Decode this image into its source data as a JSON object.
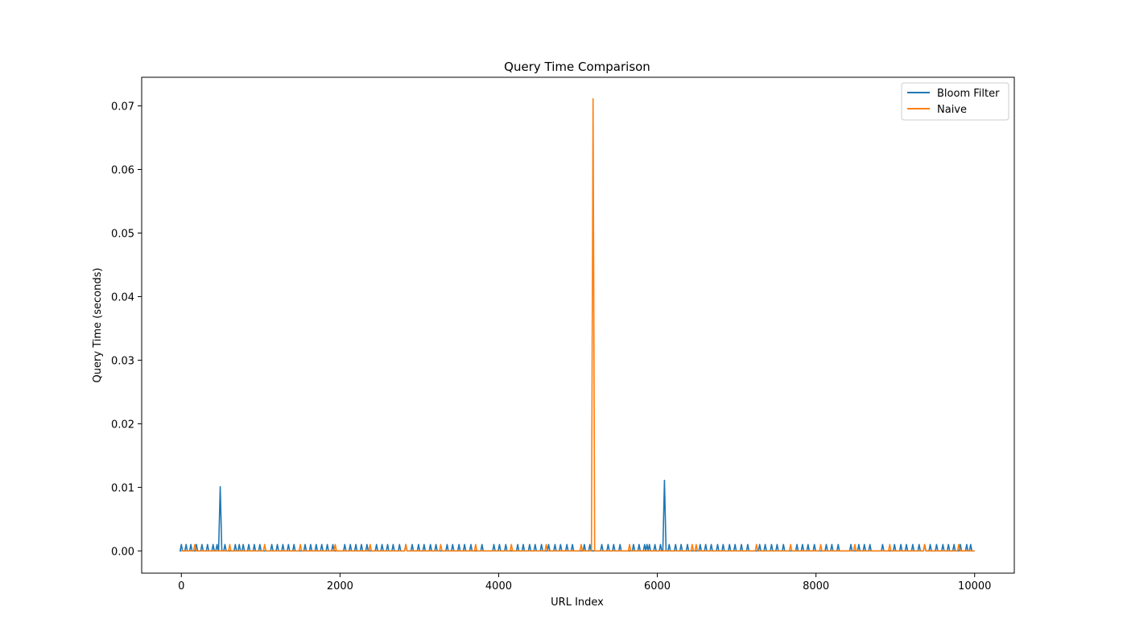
{
  "chart_data": {
    "type": "line",
    "title": "Query Time Comparison",
    "xlabel": "URL Index",
    "ylabel": "Query Time (seconds)",
    "xlim": [
      -500,
      10500
    ],
    "ylim": [
      -0.0035,
      0.0745
    ],
    "xticks": [
      0,
      2000,
      4000,
      6000,
      8000,
      10000
    ],
    "xtick_labels": [
      "0",
      "2000",
      "4000",
      "6000",
      "8000",
      "10000"
    ],
    "yticks": [
      0.0,
      0.01,
      0.02,
      0.03,
      0.04,
      0.05,
      0.06,
      0.07
    ],
    "ytick_labels": [
      "0.00",
      "0.01",
      "0.02",
      "0.03",
      "0.04",
      "0.05",
      "0.06",
      "0.07"
    ],
    "grid": false,
    "legend_position": "upper right",
    "x_range": [
      0,
      10000
    ],
    "series": [
      {
        "name": "Bloom Filter",
        "color": "#1f77b4",
        "baseline": 0.0,
        "spikes": [
          {
            "x": 0,
            "y": 0.001
          },
          {
            "x": 60,
            "y": 0.001
          },
          {
            "x": 120,
            "y": 0.001
          },
          {
            "x": 190,
            "y": 0.001
          },
          {
            "x": 260,
            "y": 0.001
          },
          {
            "x": 330,
            "y": 0.001
          },
          {
            "x": 400,
            "y": 0.001
          },
          {
            "x": 450,
            "y": 0.001
          },
          {
            "x": 490,
            "y": 0.0101
          },
          {
            "x": 550,
            "y": 0.001
          },
          {
            "x": 680,
            "y": 0.001
          },
          {
            "x": 730,
            "y": 0.001
          },
          {
            "x": 780,
            "y": 0.001
          },
          {
            "x": 850,
            "y": 0.001
          },
          {
            "x": 920,
            "y": 0.001
          },
          {
            "x": 990,
            "y": 0.001
          },
          {
            "x": 1140,
            "y": 0.001
          },
          {
            "x": 1210,
            "y": 0.001
          },
          {
            "x": 1280,
            "y": 0.001
          },
          {
            "x": 1350,
            "y": 0.001
          },
          {
            "x": 1420,
            "y": 0.001
          },
          {
            "x": 1560,
            "y": 0.001
          },
          {
            "x": 1630,
            "y": 0.001
          },
          {
            "x": 1700,
            "y": 0.001
          },
          {
            "x": 1770,
            "y": 0.001
          },
          {
            "x": 1840,
            "y": 0.001
          },
          {
            "x": 1910,
            "y": 0.001
          },
          {
            "x": 2060,
            "y": 0.001
          },
          {
            "x": 2130,
            "y": 0.001
          },
          {
            "x": 2200,
            "y": 0.001
          },
          {
            "x": 2270,
            "y": 0.001
          },
          {
            "x": 2340,
            "y": 0.001
          },
          {
            "x": 2460,
            "y": 0.001
          },
          {
            "x": 2530,
            "y": 0.001
          },
          {
            "x": 2600,
            "y": 0.001
          },
          {
            "x": 2670,
            "y": 0.001
          },
          {
            "x": 2750,
            "y": 0.001
          },
          {
            "x": 2830,
            "y": 0.001
          },
          {
            "x": 2910,
            "y": 0.001
          },
          {
            "x": 2990,
            "y": 0.001
          },
          {
            "x": 3060,
            "y": 0.001
          },
          {
            "x": 3140,
            "y": 0.001
          },
          {
            "x": 3210,
            "y": 0.001
          },
          {
            "x": 3350,
            "y": 0.001
          },
          {
            "x": 3420,
            "y": 0.001
          },
          {
            "x": 3500,
            "y": 0.001
          },
          {
            "x": 3570,
            "y": 0.001
          },
          {
            "x": 3650,
            "y": 0.001
          },
          {
            "x": 3790,
            "y": 0.001
          },
          {
            "x": 3940,
            "y": 0.001
          },
          {
            "x": 4010,
            "y": 0.001
          },
          {
            "x": 4090,
            "y": 0.001
          },
          {
            "x": 4240,
            "y": 0.001
          },
          {
            "x": 4310,
            "y": 0.001
          },
          {
            "x": 4390,
            "y": 0.001
          },
          {
            "x": 4460,
            "y": 0.001
          },
          {
            "x": 4540,
            "y": 0.001
          },
          {
            "x": 4630,
            "y": 0.001
          },
          {
            "x": 4710,
            "y": 0.001
          },
          {
            "x": 4780,
            "y": 0.001
          },
          {
            "x": 4860,
            "y": 0.001
          },
          {
            "x": 4930,
            "y": 0.001
          },
          {
            "x": 5080,
            "y": 0.001
          },
          {
            "x": 5150,
            "y": 0.001
          },
          {
            "x": 5300,
            "y": 0.001
          },
          {
            "x": 5380,
            "y": 0.001
          },
          {
            "x": 5450,
            "y": 0.001
          },
          {
            "x": 5530,
            "y": 0.001
          },
          {
            "x": 5700,
            "y": 0.001
          },
          {
            "x": 5770,
            "y": 0.001
          },
          {
            "x": 5840,
            "y": 0.001
          },
          {
            "x": 5870,
            "y": 0.001
          },
          {
            "x": 5900,
            "y": 0.001
          },
          {
            "x": 5970,
            "y": 0.001
          },
          {
            "x": 6040,
            "y": 0.001
          },
          {
            "x": 6090,
            "y": 0.0111
          },
          {
            "x": 6150,
            "y": 0.001
          },
          {
            "x": 6230,
            "y": 0.001
          },
          {
            "x": 6300,
            "y": 0.001
          },
          {
            "x": 6380,
            "y": 0.001
          },
          {
            "x": 6540,
            "y": 0.001
          },
          {
            "x": 6610,
            "y": 0.001
          },
          {
            "x": 6680,
            "y": 0.001
          },
          {
            "x": 6760,
            "y": 0.001
          },
          {
            "x": 6830,
            "y": 0.001
          },
          {
            "x": 6910,
            "y": 0.001
          },
          {
            "x": 6980,
            "y": 0.001
          },
          {
            "x": 7060,
            "y": 0.001
          },
          {
            "x": 7140,
            "y": 0.001
          },
          {
            "x": 7290,
            "y": 0.001
          },
          {
            "x": 7360,
            "y": 0.001
          },
          {
            "x": 7440,
            "y": 0.001
          },
          {
            "x": 7510,
            "y": 0.001
          },
          {
            "x": 7590,
            "y": 0.001
          },
          {
            "x": 7760,
            "y": 0.001
          },
          {
            "x": 7830,
            "y": 0.001
          },
          {
            "x": 7900,
            "y": 0.001
          },
          {
            "x": 7980,
            "y": 0.001
          },
          {
            "x": 8130,
            "y": 0.001
          },
          {
            "x": 8200,
            "y": 0.001
          },
          {
            "x": 8280,
            "y": 0.001
          },
          {
            "x": 8440,
            "y": 0.001
          },
          {
            "x": 8540,
            "y": 0.001
          },
          {
            "x": 8610,
            "y": 0.001
          },
          {
            "x": 8680,
            "y": 0.001
          },
          {
            "x": 8840,
            "y": 0.001
          },
          {
            "x": 8990,
            "y": 0.001
          },
          {
            "x": 9070,
            "y": 0.001
          },
          {
            "x": 9140,
            "y": 0.001
          },
          {
            "x": 9220,
            "y": 0.001
          },
          {
            "x": 9300,
            "y": 0.001
          },
          {
            "x": 9370,
            "y": 0.001
          },
          {
            "x": 9440,
            "y": 0.001
          },
          {
            "x": 9520,
            "y": 0.001
          },
          {
            "x": 9600,
            "y": 0.001
          },
          {
            "x": 9670,
            "y": 0.001
          },
          {
            "x": 9740,
            "y": 0.001
          },
          {
            "x": 9820,
            "y": 0.001
          },
          {
            "x": 9900,
            "y": 0.001
          },
          {
            "x": 9950,
            "y": 0.001
          }
        ]
      },
      {
        "name": "Naive",
        "color": "#ff7f0e",
        "baseline": 0.0,
        "spikes": [
          {
            "x": 170,
            "y": 0.001
          },
          {
            "x": 610,
            "y": 0.001
          },
          {
            "x": 1050,
            "y": 0.001
          },
          {
            "x": 1500,
            "y": 0.001
          },
          {
            "x": 1940,
            "y": 0.001
          },
          {
            "x": 2380,
            "y": 0.001
          },
          {
            "x": 2830,
            "y": 0.001
          },
          {
            "x": 3270,
            "y": 0.001
          },
          {
            "x": 3710,
            "y": 0.001
          },
          {
            "x": 4160,
            "y": 0.001
          },
          {
            "x": 4600,
            "y": 0.001
          },
          {
            "x": 5040,
            "y": 0.001
          },
          {
            "x": 5190,
            "y": 0.0711
          },
          {
            "x": 5650,
            "y": 0.001
          },
          {
            "x": 6440,
            "y": 0.001
          },
          {
            "x": 6490,
            "y": 0.001
          },
          {
            "x": 7250,
            "y": 0.001
          },
          {
            "x": 7680,
            "y": 0.001
          },
          {
            "x": 8060,
            "y": 0.001
          },
          {
            "x": 8490,
            "y": 0.001
          },
          {
            "x": 8930,
            "y": 0.001
          },
          {
            "x": 9370,
            "y": 0.001
          },
          {
            "x": 9800,
            "y": 0.001
          }
        ]
      }
    ]
  }
}
